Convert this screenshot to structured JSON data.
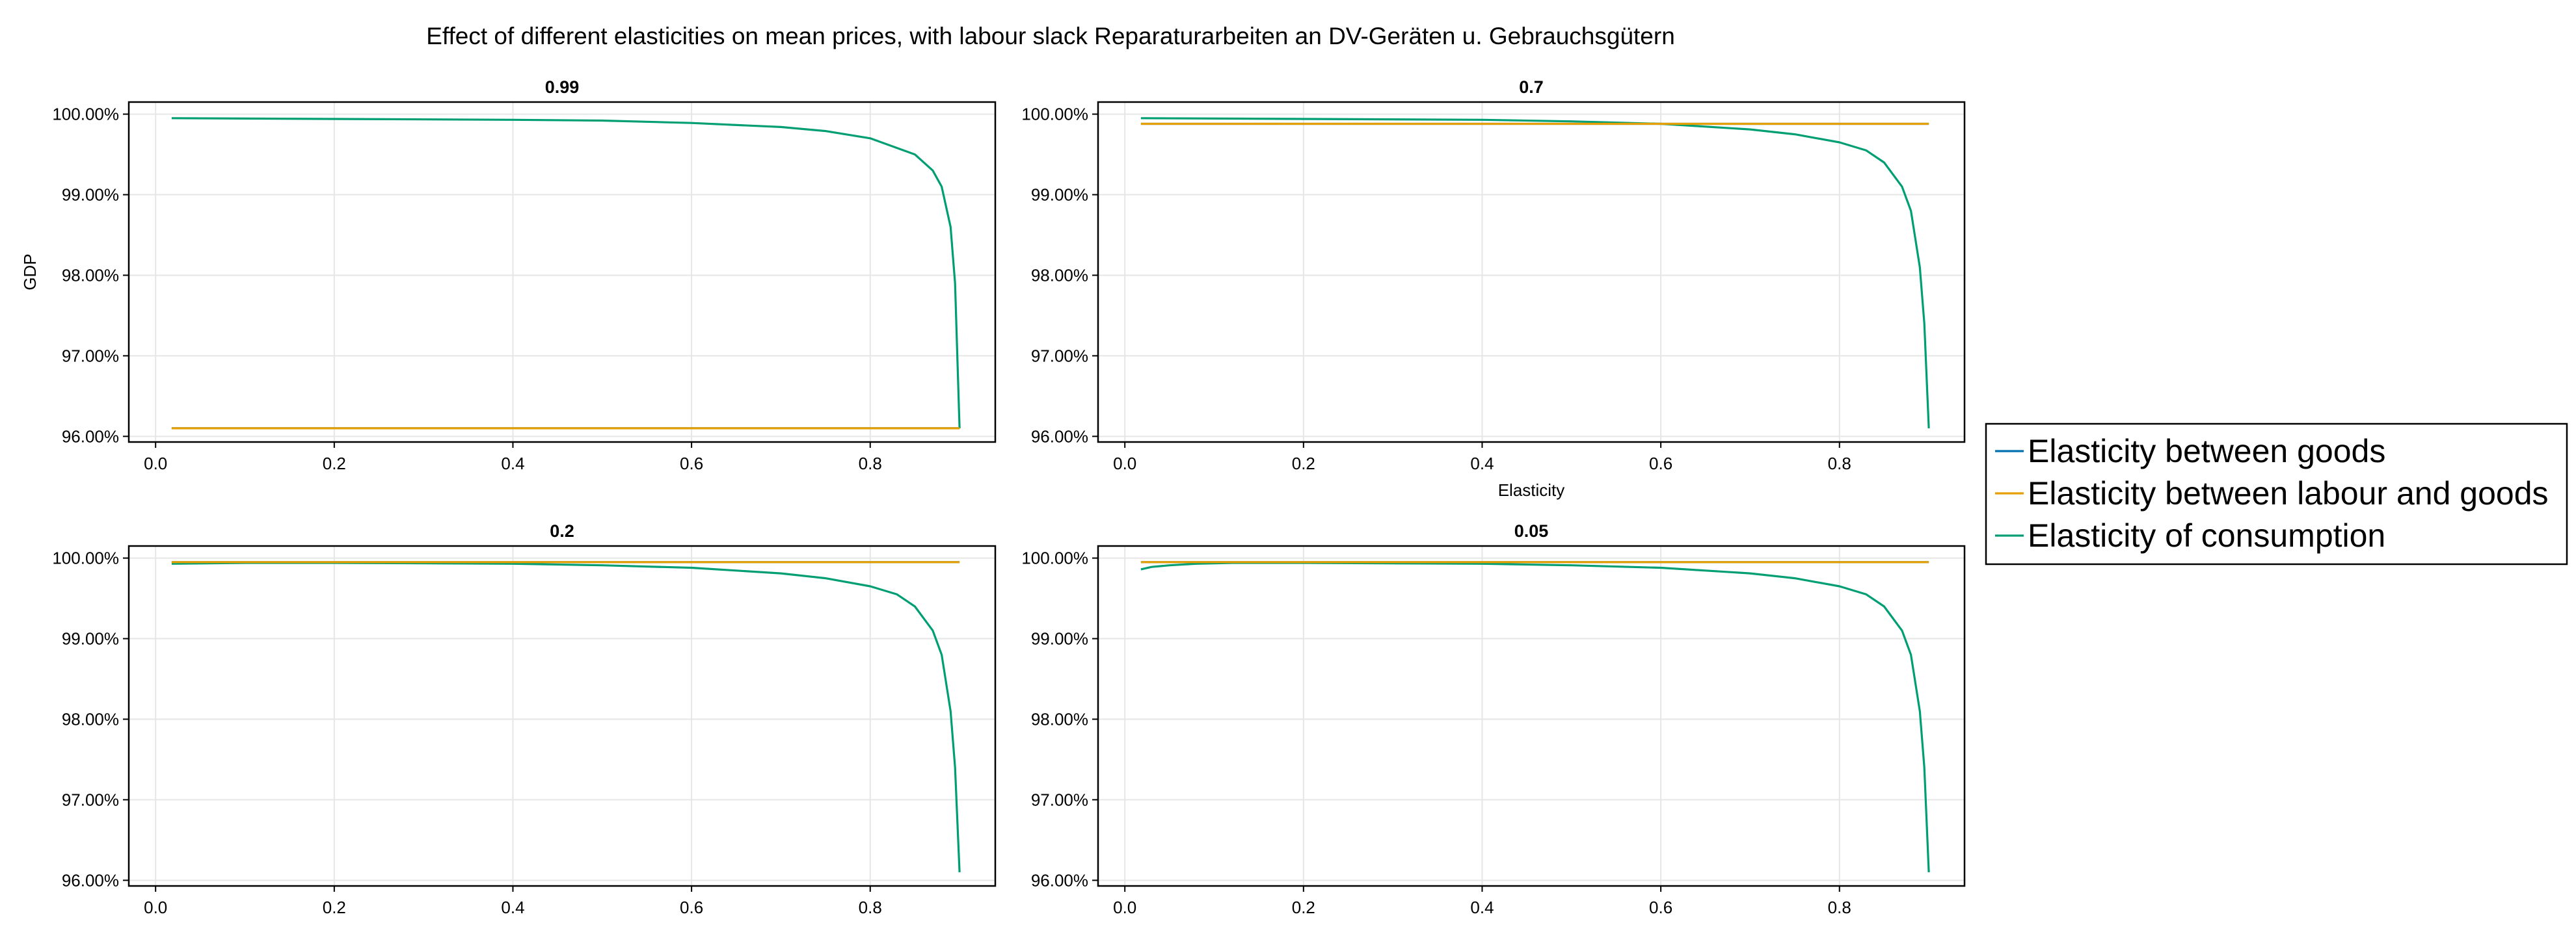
{
  "title": "Effect of different elasticities on mean prices, with labour slack Reparaturarbeiten an DV-Geräten u. Gebrauchsgütern",
  "colors": {
    "goods": "#0072b2",
    "labour_goods": "#e69f00",
    "consumption": "#009e73"
  },
  "legend": {
    "placement": "right",
    "items": [
      {
        "key": "goods",
        "label": "Elasticity between goods"
      },
      {
        "key": "labour_goods",
        "label": "Elasticity between labour and goods"
      },
      {
        "key": "consumption",
        "label": "Elasticity of consumption"
      }
    ]
  },
  "chart_data": [
    {
      "type": "line",
      "subtitle": "0.99",
      "xlabel": "",
      "ylabel": "GDP",
      "xlim": [
        -0.03,
        0.94
      ],
      "ylim": [
        0.9593,
        1.0015
      ],
      "xticks": [
        0.0,
        0.2,
        0.4,
        0.6,
        0.8
      ],
      "xtick_labels": [
        "0.0",
        "0.2",
        "0.4",
        "0.6",
        "0.8"
      ],
      "yticks": [
        0.96,
        0.97,
        0.98,
        0.99,
        1.0
      ],
      "ytick_labels": [
        "96.00%",
        "97.00%",
        "98.00%",
        "99.00%",
        "100.00%"
      ],
      "grid": true,
      "series": [
        {
          "key": "goods",
          "x": [
            0.018,
            0.9
          ],
          "y": [
            0.961,
            0.961
          ]
        },
        {
          "key": "labour_goods",
          "x": [
            0.018,
            0.9
          ],
          "y": [
            0.961,
            0.961
          ]
        },
        {
          "key": "consumption",
          "x": [
            0.018,
            0.2,
            0.4,
            0.5,
            0.6,
            0.7,
            0.75,
            0.8,
            0.85,
            0.87,
            0.88,
            0.89,
            0.895,
            0.9
          ],
          "y": [
            0.9995,
            0.9994,
            0.9993,
            0.9992,
            0.9989,
            0.9984,
            0.9979,
            0.997,
            0.995,
            0.993,
            0.991,
            0.986,
            0.979,
            0.961
          ]
        }
      ]
    },
    {
      "type": "line",
      "subtitle": "0.7",
      "xlabel": "Elasticity",
      "ylabel": "",
      "xlim": [
        -0.03,
        0.94
      ],
      "ylim": [
        0.9593,
        1.0015
      ],
      "xticks": [
        0.0,
        0.2,
        0.4,
        0.6,
        0.8
      ],
      "xtick_labels": [
        "0.0",
        "0.2",
        "0.4",
        "0.6",
        "0.8"
      ],
      "yticks": [
        0.96,
        0.97,
        0.98,
        0.99,
        1.0
      ],
      "ytick_labels": [
        "96.00%",
        "97.00%",
        "98.00%",
        "99.00%",
        "100.00%"
      ],
      "grid": true,
      "series": [
        {
          "key": "goods",
          "x": [
            0.018,
            0.9
          ],
          "y": [
            0.9988,
            0.9988
          ]
        },
        {
          "key": "labour_goods",
          "x": [
            0.018,
            0.9
          ],
          "y": [
            0.9988,
            0.9988
          ]
        },
        {
          "key": "consumption",
          "x": [
            0.018,
            0.2,
            0.4,
            0.5,
            0.6,
            0.7,
            0.75,
            0.8,
            0.83,
            0.85,
            0.87,
            0.88,
            0.89,
            0.895,
            0.9
          ],
          "y": [
            0.9995,
            0.9994,
            0.9993,
            0.9991,
            0.9988,
            0.9981,
            0.9975,
            0.9965,
            0.9955,
            0.994,
            0.991,
            0.988,
            0.981,
            0.974,
            0.961
          ]
        }
      ]
    },
    {
      "type": "line",
      "subtitle": "0.2",
      "xlabel": "",
      "ylabel": "",
      "xlim": [
        -0.03,
        0.94
      ],
      "ylim": [
        0.9593,
        1.0015
      ],
      "xticks": [
        0.0,
        0.2,
        0.4,
        0.6,
        0.8
      ],
      "xtick_labels": [
        "0.0",
        "0.2",
        "0.4",
        "0.6",
        "0.8"
      ],
      "yticks": [
        0.96,
        0.97,
        0.98,
        0.99,
        1.0
      ],
      "ytick_labels": [
        "96.00%",
        "97.00%",
        "98.00%",
        "99.00%",
        "100.00%"
      ],
      "grid": true,
      "series": [
        {
          "key": "goods",
          "x": [
            0.018,
            0.9
          ],
          "y": [
            0.9995,
            0.9995
          ]
        },
        {
          "key": "labour_goods",
          "x": [
            0.018,
            0.9
          ],
          "y": [
            0.9995,
            0.9995
          ]
        },
        {
          "key": "consumption",
          "x": [
            0.018,
            0.1,
            0.2,
            0.4,
            0.5,
            0.6,
            0.7,
            0.75,
            0.8,
            0.83,
            0.85,
            0.87,
            0.88,
            0.89,
            0.895,
            0.9
          ],
          "y": [
            0.9993,
            0.9994,
            0.9994,
            0.9993,
            0.9991,
            0.9988,
            0.9981,
            0.9975,
            0.9965,
            0.9955,
            0.994,
            0.991,
            0.988,
            0.981,
            0.974,
            0.961
          ]
        }
      ]
    },
    {
      "type": "line",
      "subtitle": "0.05",
      "xlabel": "",
      "ylabel": "",
      "xlim": [
        -0.03,
        0.94
      ],
      "ylim": [
        0.9593,
        1.0015
      ],
      "xticks": [
        0.0,
        0.2,
        0.4,
        0.6,
        0.8
      ],
      "xtick_labels": [
        "0.0",
        "0.2",
        "0.4",
        "0.6",
        "0.8"
      ],
      "yticks": [
        0.96,
        0.97,
        0.98,
        0.99,
        1.0
      ],
      "ytick_labels": [
        "96.00%",
        "97.00%",
        "98.00%",
        "99.00%",
        "100.00%"
      ],
      "grid": true,
      "series": [
        {
          "key": "goods",
          "x": [
            0.018,
            0.9
          ],
          "y": [
            0.9995,
            0.9995
          ]
        },
        {
          "key": "labour_goods",
          "x": [
            0.018,
            0.9
          ],
          "y": [
            0.9995,
            0.9995
          ]
        },
        {
          "key": "consumption",
          "x": [
            0.018,
            0.03,
            0.05,
            0.08,
            0.12,
            0.2,
            0.4,
            0.5,
            0.6,
            0.7,
            0.75,
            0.8,
            0.83,
            0.85,
            0.87,
            0.88,
            0.89,
            0.895,
            0.9
          ],
          "y": [
            0.9986,
            0.9989,
            0.9991,
            0.9993,
            0.9994,
            0.9994,
            0.9993,
            0.9991,
            0.9988,
            0.9981,
            0.9975,
            0.9965,
            0.9955,
            0.994,
            0.991,
            0.988,
            0.981,
            0.974,
            0.961
          ]
        }
      ]
    }
  ]
}
